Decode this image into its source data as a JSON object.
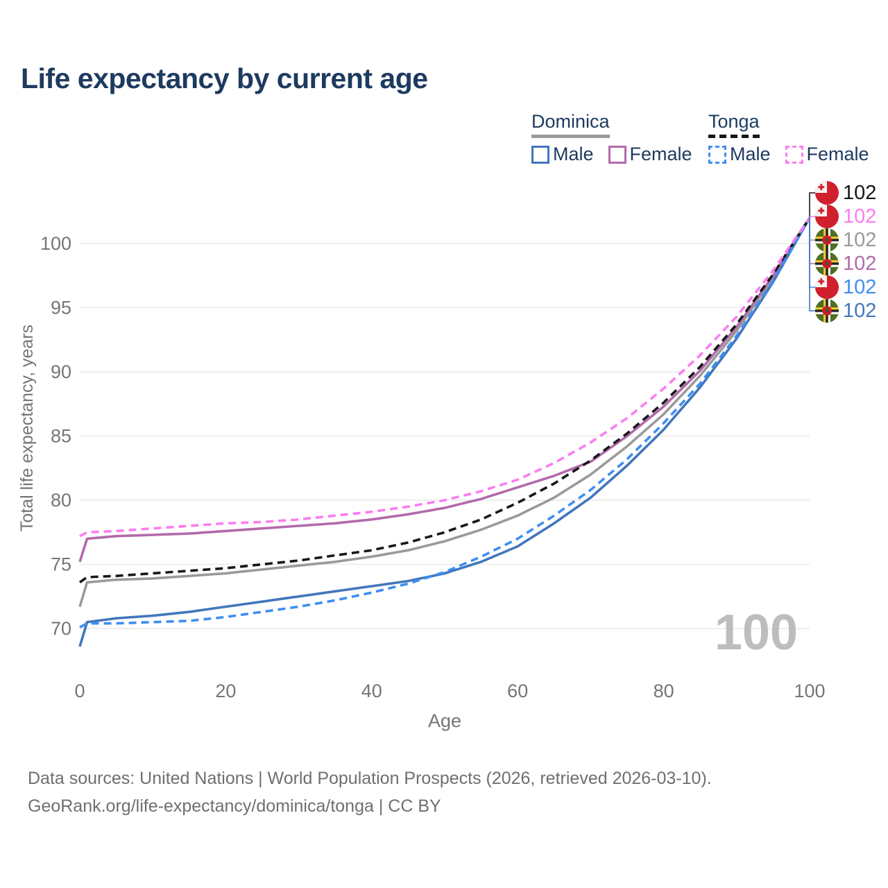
{
  "title": "Life expectancy by current age",
  "legend": {
    "dominica": {
      "label": "Dominica",
      "male": "Male",
      "female": "Female"
    },
    "tonga": {
      "label": "Tonga",
      "male": "Male",
      "female": "Female"
    }
  },
  "chart_data": {
    "type": "line",
    "title": "Life expectancy by current age",
    "xlabel": "Age",
    "ylabel": "Total life expectancy, years",
    "xlim": [
      0,
      100
    ],
    "ylim": [
      68,
      103
    ],
    "x_ticks": [
      0,
      20,
      40,
      60,
      80,
      100
    ],
    "y_ticks": [
      70,
      75,
      80,
      85,
      90,
      95,
      100
    ],
    "grid": "horizontal",
    "legend_position": "top-right",
    "age_counter": "100",
    "x": [
      0,
      1,
      5,
      10,
      15,
      20,
      25,
      30,
      35,
      40,
      45,
      50,
      55,
      60,
      65,
      70,
      75,
      80,
      85,
      90,
      95,
      100
    ],
    "series": [
      {
        "name": "Tonga Female",
        "country": "Tonga",
        "sex": "Female",
        "color": "#fa7df0",
        "dash": true,
        "values": [
          77.2,
          77.5,
          77.6,
          77.8,
          78.0,
          78.2,
          78.3,
          78.5,
          78.8,
          79.1,
          79.5,
          80.0,
          80.7,
          81.6,
          82.9,
          84.5,
          86.4,
          88.7,
          91.3,
          94.3,
          97.9,
          102
        ]
      },
      {
        "name": "Tonga",
        "country": "Tonga",
        "sex": "All",
        "color": "#171717",
        "dash": true,
        "values": [
          73.6,
          74.0,
          74.1,
          74.3,
          74.5,
          74.7,
          75.0,
          75.3,
          75.7,
          76.1,
          76.7,
          77.5,
          78.5,
          79.8,
          81.3,
          83.1,
          85.2,
          87.6,
          90.4,
          93.7,
          97.6,
          102
        ]
      },
      {
        "name": "Dominica Female",
        "country": "Dominica",
        "sex": "Female",
        "color": "#b26aac",
        "dash": false,
        "values": [
          75.2,
          77.0,
          77.2,
          77.3,
          77.4,
          77.6,
          77.8,
          78.0,
          78.2,
          78.5,
          78.9,
          79.4,
          80.1,
          81.0,
          81.9,
          83.0,
          85.0,
          87.3,
          90.1,
          93.5,
          97.5,
          102
        ]
      },
      {
        "name": "Dominica",
        "country": "Dominica",
        "sex": "All",
        "color": "#9a9a9a",
        "dash": false,
        "values": [
          71.7,
          73.6,
          73.8,
          73.9,
          74.1,
          74.3,
          74.6,
          74.9,
          75.2,
          75.6,
          76.1,
          76.8,
          77.7,
          78.8,
          80.2,
          82.0,
          84.2,
          86.7,
          89.7,
          93.2,
          97.3,
          102
        ]
      },
      {
        "name": "Tonga Male",
        "country": "Tonga",
        "sex": "Male",
        "color": "#3e8ef2",
        "dash": true,
        "values": [
          70.1,
          70.4,
          70.4,
          70.5,
          70.6,
          70.9,
          71.3,
          71.7,
          72.2,
          72.8,
          73.5,
          74.4,
          75.6,
          77.0,
          78.8,
          80.8,
          83.2,
          86.0,
          89.1,
          92.8,
          97.1,
          102
        ]
      },
      {
        "name": "Dominica Male",
        "country": "Dominica",
        "sex": "Male",
        "color": "#4276bb",
        "dash": false,
        "values": [
          68.6,
          70.5,
          70.8,
          71.0,
          71.3,
          71.7,
          72.1,
          72.5,
          72.9,
          73.3,
          73.7,
          74.3,
          75.2,
          76.4,
          78.2,
          80.2,
          82.7,
          85.5,
          88.8,
          92.6,
          97.0,
          102
        ]
      }
    ],
    "end_labels": [
      {
        "flag": "tonga",
        "series": "Tonga",
        "value": "102",
        "color": "#171717"
      },
      {
        "flag": "tonga",
        "series": "Tonga Female",
        "value": "102",
        "color": "#fa7df0"
      },
      {
        "flag": "dominica",
        "series": "Dominica",
        "value": "102",
        "color": "#9a9a9a"
      },
      {
        "flag": "dominica",
        "series": "Dominica Female",
        "value": "102",
        "color": "#b26aac"
      },
      {
        "flag": "tonga",
        "series": "Tonga Male",
        "value": "102",
        "color": "#3e8ef2"
      },
      {
        "flag": "dominica",
        "series": "Dominica Male",
        "value": "102",
        "color": "#4276bb"
      }
    ]
  },
  "footer": {
    "line1": "Data sources: United Nations | World Population Prospects (2026, retrieved 2026-03-10).",
    "line2": "GeoRank.org/life-expectancy/dominica/tonga | CC BY"
  }
}
